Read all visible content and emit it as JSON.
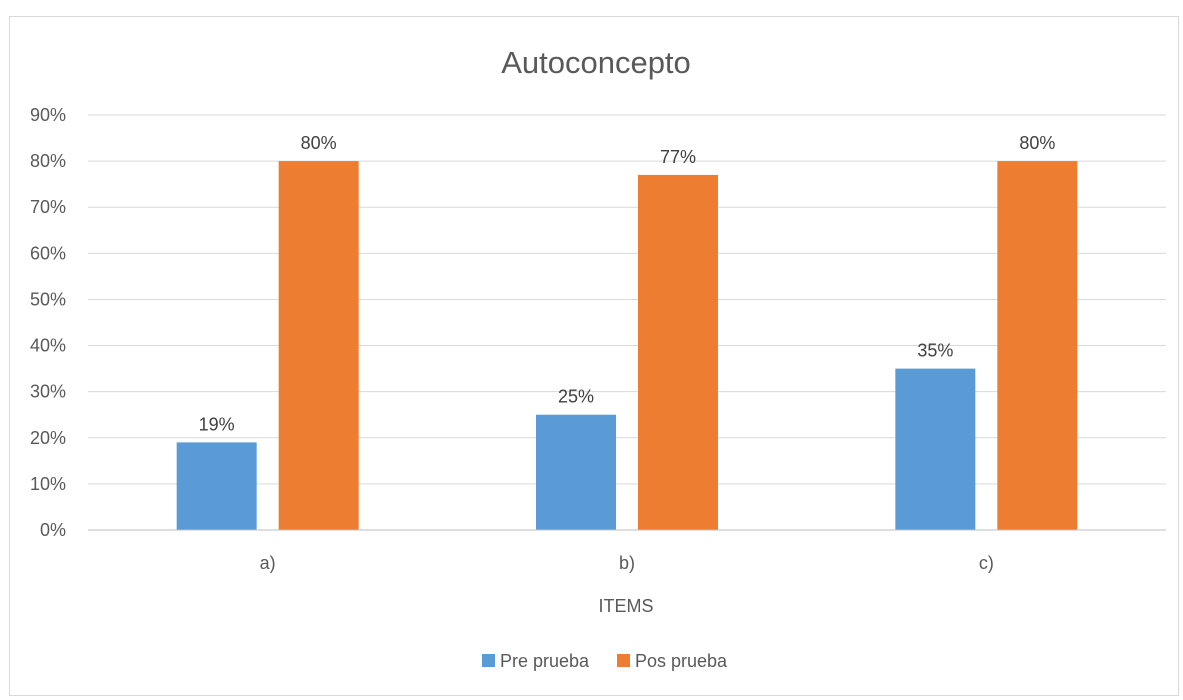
{
  "chart_data": {
    "type": "bar",
    "title": "Autoconcepto",
    "xlabel": "ITEMS",
    "ylabel": "",
    "categories": [
      "a)",
      "b)",
      "c)"
    ],
    "series": [
      {
        "name": "Pre prueba",
        "values": [
          0.19,
          0.25,
          0.35
        ],
        "labels": [
          "19%",
          "25%",
          "35%"
        ],
        "color": "#5b9bd5"
      },
      {
        "name": "Pos prueba",
        "values": [
          0.8,
          0.77,
          0.8
        ],
        "labels": [
          "80%",
          "77%",
          "80%"
        ],
        "color": "#ed7d31"
      }
    ],
    "ylim": [
      0,
      0.9
    ],
    "yticks": [
      "0%",
      "10%",
      "20%",
      "30%",
      "40%",
      "50%",
      "60%",
      "70%",
      "80%",
      "90%"
    ],
    "grid": true,
    "gridColor": "#d9d9d9",
    "legend_position": "bottom"
  }
}
